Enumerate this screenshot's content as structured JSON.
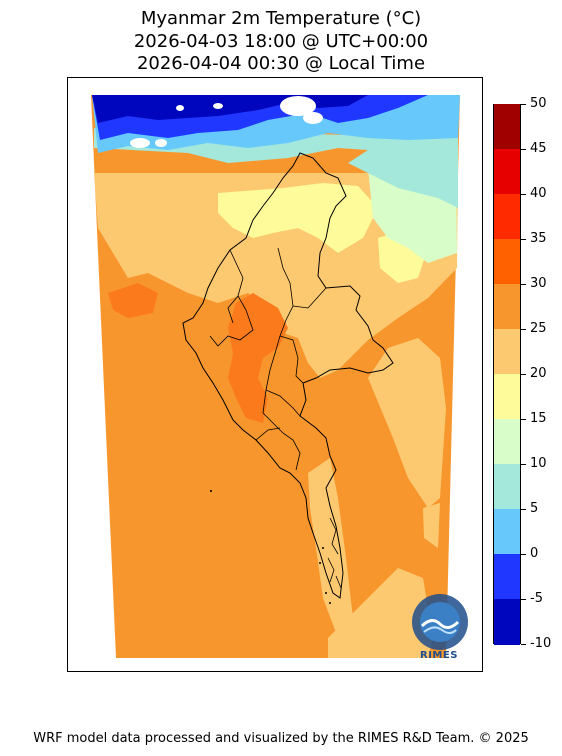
{
  "title": {
    "line1": "Myanmar 2m Temperature (°C)",
    "line2": "2026-04-03 18:00 @ UTC+00:00",
    "line3": "2026-04-04 00:30 @ Local Time"
  },
  "colorbar": {
    "labels": [
      "50",
      "45",
      "40",
      "35",
      "30",
      "25",
      "20",
      "15",
      "10",
      "5",
      "0",
      "-5",
      "-10"
    ],
    "colors": [
      "#a00000",
      "#e60000",
      "#ff2a00",
      "#ff6000",
      "#f8962e",
      "#fdc970",
      "#fdfb9a",
      "#d8fdc8",
      "#a4e8dc",
      "#67c8fb",
      "#1f37ff",
      "#0006be"
    ]
  },
  "map_colors": {
    "t25_30": "#f8962e",
    "t30_35": "#fb7a1c",
    "t20_25": "#fdc970",
    "t15_20": "#fdfb9a",
    "t10_15": "#d8fdc8",
    "t5_10": "#a4e8dc",
    "t0_5": "#67c8fb",
    "tm5_0": "#1f37ff",
    "tm10_m5": "#0006be"
  },
  "logo": {
    "text": "RIMES"
  },
  "footer": "WRF model data processed and visualized by the RIMES R&D Team. © 2025"
}
